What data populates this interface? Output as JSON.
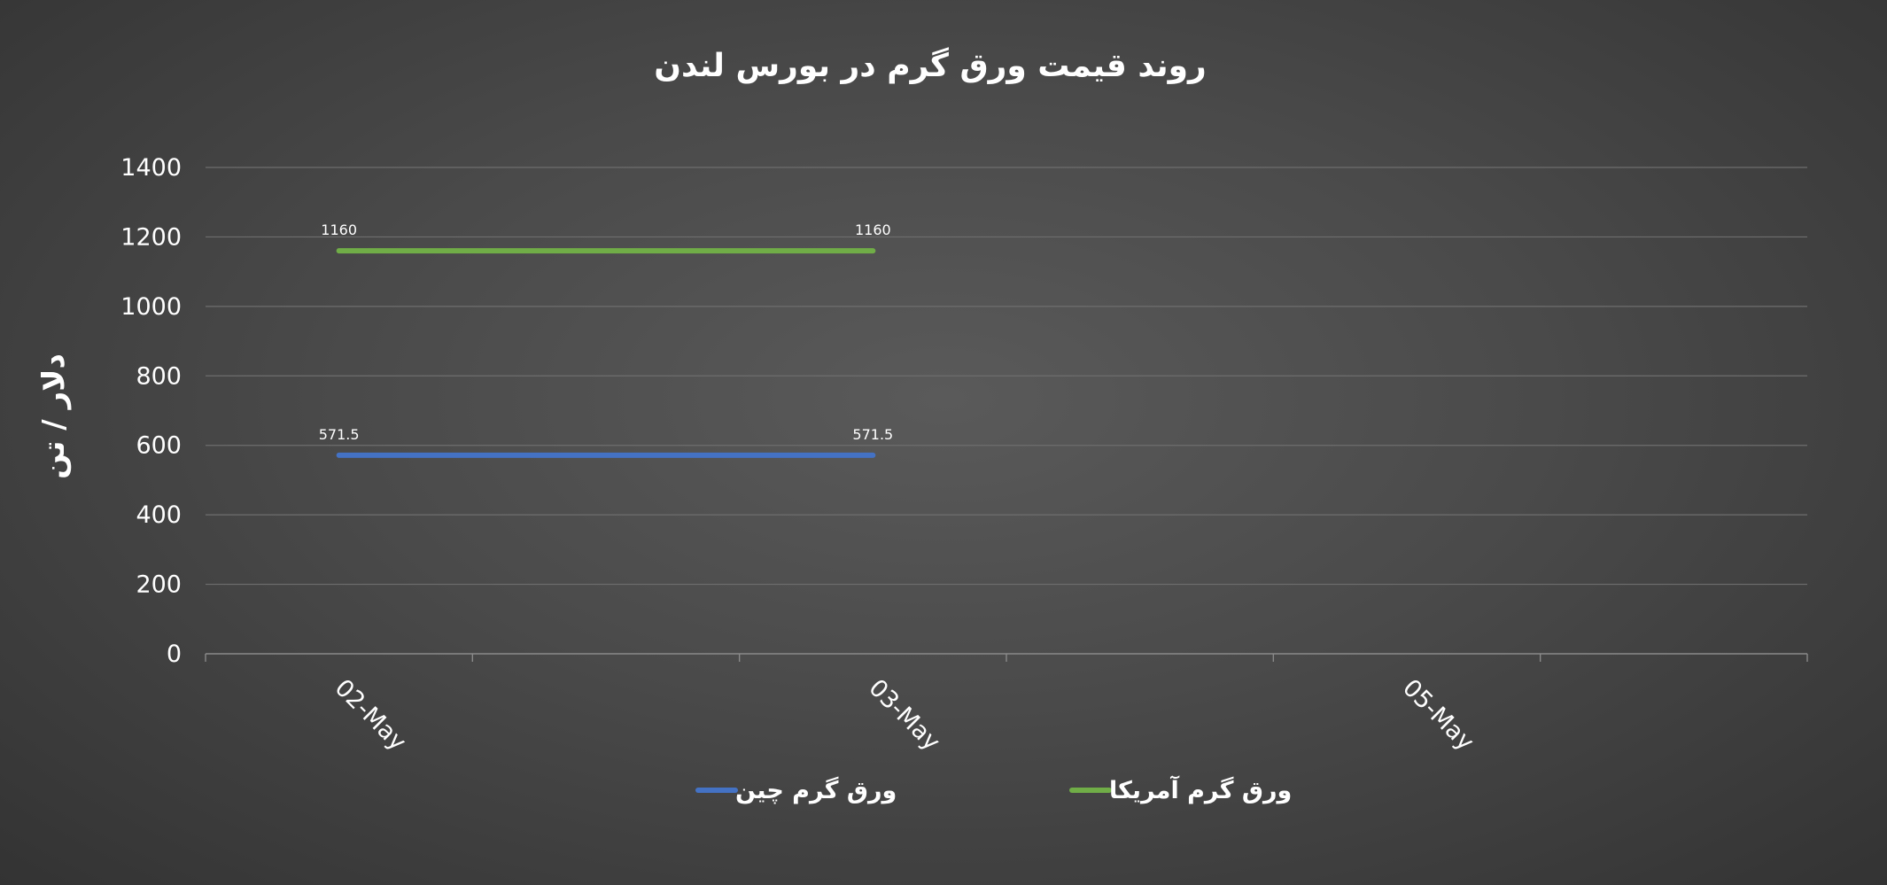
{
  "chart_data": {
    "type": "line",
    "title": "روند قیمت ورق گرم در بورس لندن",
    "xlabel": "",
    "ylabel": "دلار / تن",
    "ylim": [
      0,
      1400
    ],
    "yticks": [
      0,
      200,
      400,
      600,
      800,
      1000,
      1200,
      1400
    ],
    "categories": [
      "02-May",
      "",
      "03-May",
      "",
      "05-May",
      ""
    ],
    "grid": true,
    "legend_position": "bottom",
    "series": [
      {
        "name": "ورق گرم چین",
        "color": "#4472c4",
        "values": [
          571.5,
          null,
          571.5,
          null,
          null,
          null
        ],
        "labels": [
          "571.5",
          "",
          "571.5",
          "",
          "",
          ""
        ]
      },
      {
        "name": "ورق گرم آمریکا",
        "color": "#70ad47",
        "values": [
          1160,
          null,
          1160,
          null,
          null,
          null
        ],
        "labels": [
          "1160",
          "",
          "1160",
          "",
          "",
          ""
        ]
      }
    ]
  }
}
